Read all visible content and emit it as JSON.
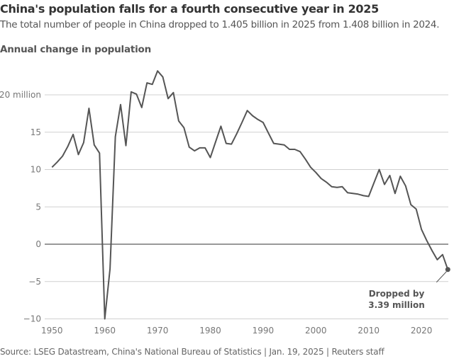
{
  "chart_data": {
    "type": "line",
    "title": "China's population falls for a fourth consecutive year in 2025",
    "subtitle": "The total number of people in China dropped to 1.405 billion in 2025 from 1.408 billion in 2024.",
    "ylabel": "Annual change in population",
    "xlabel": "",
    "xlim": [
      1950,
      2025
    ],
    "ylim": [
      -10,
      23
    ],
    "grid": true,
    "x_ticks": [
      1950,
      1960,
      1970,
      1980,
      1990,
      2000,
      2010,
      2020
    ],
    "x_tick_labels": [
      "1950",
      "1960",
      "1970",
      "1980",
      "1990",
      "2000",
      "2010",
      "2020"
    ],
    "y_ticks": [
      20,
      15,
      10,
      5,
      0,
      -5,
      -10
    ],
    "y_tick_labels": [
      "20 million",
      "15",
      "10",
      "5",
      "0",
      "−5",
      "−10"
    ],
    "x": [
      1950,
      1951,
      1952,
      1953,
      1954,
      1955,
      1956,
      1957,
      1958,
      1959,
      1960,
      1961,
      1962,
      1963,
      1964,
      1965,
      1966,
      1967,
      1968,
      1969,
      1970,
      1971,
      1972,
      1973,
      1974,
      1975,
      1976,
      1977,
      1978,
      1979,
      1980,
      1981,
      1982,
      1983,
      1984,
      1985,
      1986,
      1987,
      1988,
      1989,
      1990,
      1991,
      1992,
      1993,
      1994,
      1995,
      1996,
      1997,
      1998,
      1999,
      2000,
      2001,
      2002,
      2003,
      2004,
      2005,
      2006,
      2007,
      2008,
      2009,
      2010,
      2011,
      2012,
      2013,
      2014,
      2015,
      2016,
      2017,
      2018,
      2019,
      2020,
      2021,
      2022,
      2023,
      2024,
      2025
    ],
    "values": [
      10.3,
      11.0,
      11.8,
      13.1,
      14.7,
      12.0,
      13.6,
      18.2,
      13.3,
      12.2,
      -10.0,
      -3.3,
      14.4,
      18.7,
      13.2,
      20.4,
      20.1,
      18.3,
      21.6,
      21.4,
      23.2,
      22.4,
      19.5,
      20.3,
      16.5,
      15.6,
      13.0,
      12.5,
      12.9,
      12.9,
      11.6,
      13.7,
      15.8,
      13.5,
      13.4,
      14.8,
      16.3,
      17.9,
      17.2,
      16.7,
      16.3,
      14.9,
      13.5,
      13.4,
      13.3,
      12.7,
      12.7,
      12.4,
      11.4,
      10.3,
      9.6,
      8.8,
      8.3,
      7.7,
      7.6,
      7.7,
      6.9,
      6.8,
      6.7,
      6.5,
      6.4,
      8.2,
      10.0,
      8.0,
      9.2,
      6.8,
      9.1,
      7.8,
      5.3,
      4.7,
      2.0,
      0.5,
      -0.85,
      -2.08,
      -1.39,
      -3.39
    ],
    "annotation": {
      "line1": "Dropped by",
      "line2": "3.39 million",
      "year": 2025
    },
    "source": "Source: LSEG Datastream, China's National Bureau of Statistics | Jan. 19, 2025  | Reuters staff",
    "colors": {
      "line": "#555555",
      "grid": "#d0d0d0",
      "zero_line": "#333333"
    }
  }
}
